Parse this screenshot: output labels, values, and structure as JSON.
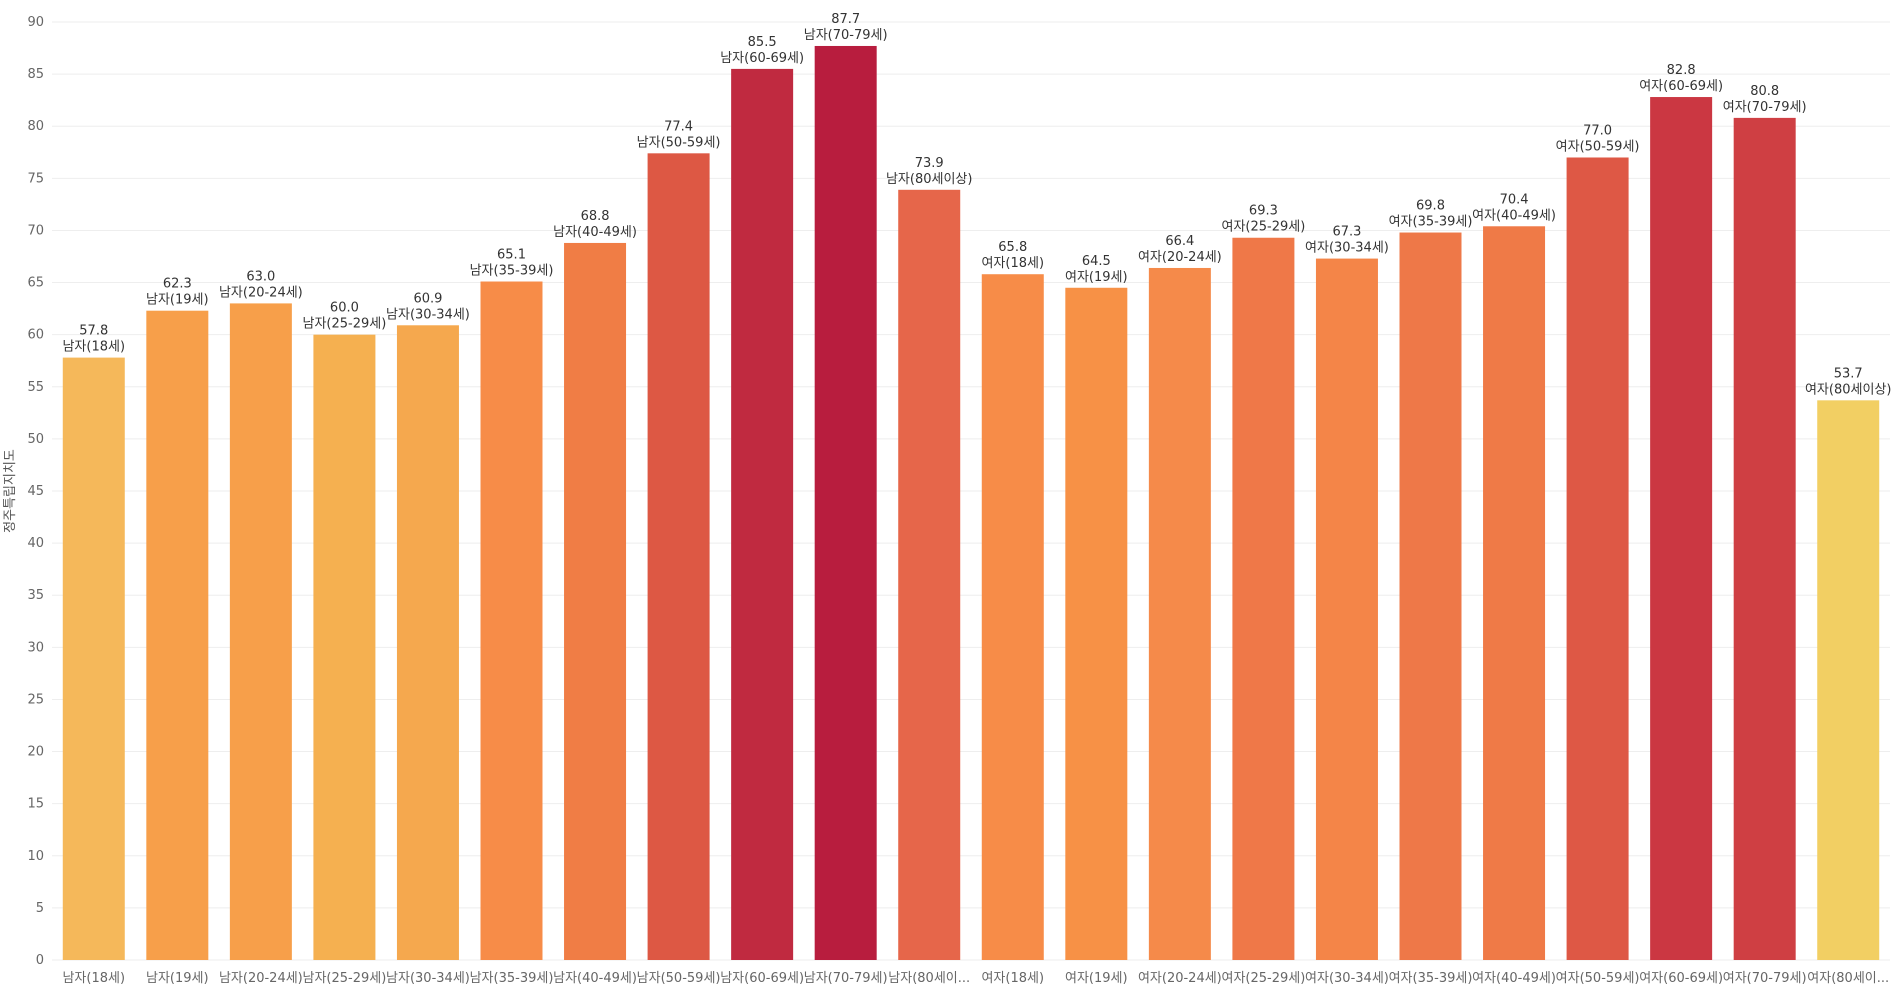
{
  "chart_data": {
    "type": "bar",
    "title": "",
    "xlabel": "",
    "ylabel": "정주특립지치도",
    "ylim": [
      0,
      90
    ],
    "yticks": [
      0,
      5,
      10,
      15,
      20,
      25,
      30,
      35,
      40,
      45,
      50,
      55,
      60,
      65,
      70,
      75,
      80,
      85,
      90
    ],
    "grid": true,
    "categories": [
      "남자(18세)",
      "남자(19세)",
      "남자(20-24세)",
      "남자(25-29세)",
      "남자(30-34세)",
      "남자(35-39세)",
      "남자(40-49세)",
      "남자(50-59세)",
      "남자(60-69세)",
      "남자(70-79세)",
      "남자(80세이상)",
      "여자(18세)",
      "여자(19세)",
      "여자(20-24세)",
      "여자(25-29세)",
      "여자(30-34세)",
      "여자(35-39세)",
      "여자(40-49세)",
      "여자(50-59세)",
      "여자(60-69세)",
      "여자(70-79세)",
      "여자(80세이상)"
    ],
    "axis_labels": [
      "남자(18세)",
      "남자(19세)",
      "남자(20-24세)",
      "남자(25-29세)",
      "남자(30-34세)",
      "남자(35-39세)",
      "남자(40-49세)",
      "남자(50-59세)",
      "남자(60-69세)",
      "남자(70-79세)",
      "남자(80세이...",
      "여자(18세)",
      "여자(19세)",
      "여자(20-24세)",
      "여자(25-29세)",
      "여자(30-34세)",
      "여자(35-39세)",
      "여자(40-49세)",
      "여자(50-59세)",
      "여자(60-69세)",
      "여자(70-79세)",
      "여자(80세이..."
    ],
    "values": [
      57.8,
      62.3,
      63.0,
      60.0,
      60.9,
      65.1,
      68.8,
      77.4,
      85.5,
      87.7,
      73.9,
      65.8,
      64.5,
      66.4,
      69.3,
      67.3,
      69.8,
      70.4,
      77.0,
      82.8,
      80.8,
      53.7
    ],
    "value_labels": [
      "57.8",
      "62.3",
      "63.0",
      "60.0",
      "60.9",
      "65.1",
      "68.8",
      "77.4",
      "85.5",
      "87.7",
      "73.9",
      "65.8",
      "64.5",
      "66.4",
      "69.3",
      "67.3",
      "69.8",
      "70.4",
      "77.0",
      "82.8",
      "80.8",
      "53.7"
    ],
    "colors": [
      "#f5b85a",
      "#f79f4a",
      "#f79f4a",
      "#f5b050",
      "#f5a84e",
      "#f78c48",
      "#f07d45",
      "#dd5844",
      "#c02a40",
      "#b81d3e",
      "#e6664a",
      "#f78c48",
      "#f79146",
      "#f58a4a",
      "#ef7848",
      "#f48548",
      "#ee7848",
      "#ef7a47",
      "#de5845",
      "#cb3742",
      "#cf3f43",
      "#f2cf63"
    ]
  }
}
